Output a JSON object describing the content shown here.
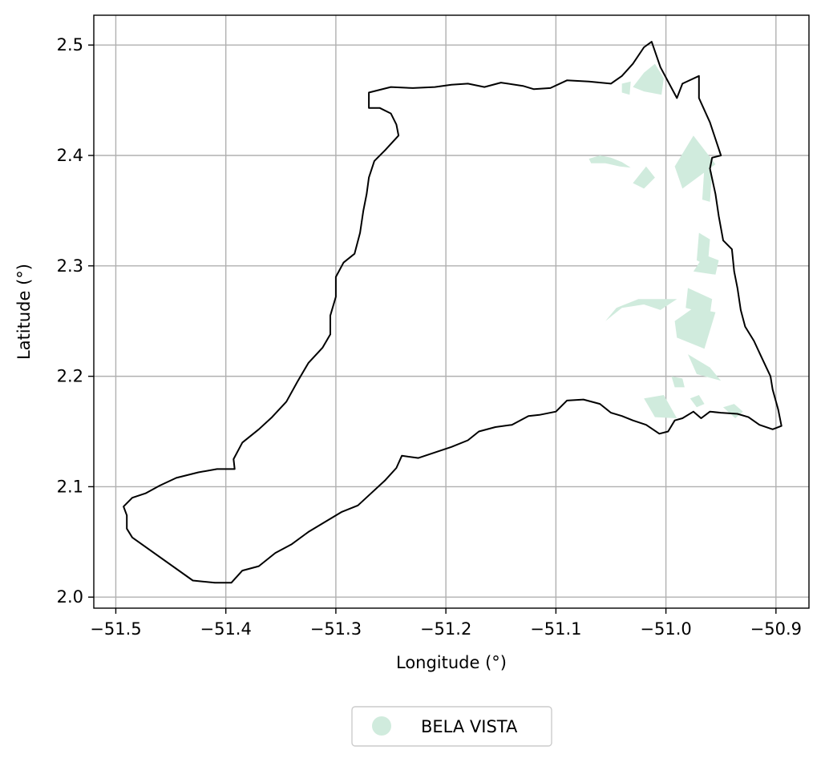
{
  "chart_data": {
    "type": "map",
    "xlabel": "Longitude (°)",
    "ylabel": "Latitude (°)",
    "xlim": [
      -51.52,
      -50.87
    ],
    "ylim": [
      1.99,
      2.527
    ],
    "x_ticks": [
      -51.5,
      -51.4,
      -51.3,
      -51.2,
      -51.1,
      -51.0,
      -50.9
    ],
    "x_tick_labels": [
      "−51.5",
      "−51.4",
      "−51.3",
      "−51.2",
      "−51.1",
      "−51.0",
      "−50.9"
    ],
    "y_ticks": [
      2.0,
      2.1,
      2.2,
      2.3,
      2.4,
      2.5
    ],
    "y_tick_labels": [
      "2.0",
      "2.1",
      "2.2",
      "2.3",
      "2.4",
      "2.5"
    ],
    "grid": true,
    "legend_position": "bottom-center",
    "legend": [
      {
        "label": "BELA VISTA",
        "color": "#d0ebdd"
      }
    ],
    "boundary": [
      [
        -51.485,
        2.054
      ],
      [
        -51.49,
        2.062
      ],
      [
        -51.49,
        2.074
      ],
      [
        -51.493,
        2.082
      ],
      [
        -51.485,
        2.09
      ],
      [
        -51.473,
        2.094
      ],
      [
        -51.46,
        2.101
      ],
      [
        -51.445,
        2.108
      ],
      [
        -51.425,
        2.113
      ],
      [
        -51.408,
        2.116
      ],
      [
        -51.392,
        2.116
      ],
      [
        -51.393,
        2.125
      ],
      [
        -51.385,
        2.14
      ],
      [
        -51.37,
        2.152
      ],
      [
        -51.358,
        2.163
      ],
      [
        -51.345,
        2.177
      ],
      [
        -51.335,
        2.195
      ],
      [
        -51.325,
        2.212
      ],
      [
        -51.312,
        2.226
      ],
      [
        -51.305,
        2.238
      ],
      [
        -51.305,
        2.255
      ],
      [
        -51.3,
        2.272
      ],
      [
        -51.3,
        2.29
      ],
      [
        -51.293,
        2.303
      ],
      [
        -51.283,
        2.311
      ],
      [
        -51.278,
        2.33
      ],
      [
        -51.275,
        2.35
      ],
      [
        -51.272,
        2.365
      ],
      [
        -51.27,
        2.38
      ],
      [
        -51.265,
        2.395
      ],
      [
        -51.255,
        2.405
      ],
      [
        -51.243,
        2.418
      ],
      [
        -51.245,
        2.428
      ],
      [
        -51.25,
        2.438
      ],
      [
        -51.26,
        2.443
      ],
      [
        -51.27,
        2.443
      ],
      [
        -51.27,
        2.457
      ],
      [
        -51.25,
        2.462
      ],
      [
        -51.23,
        2.461
      ],
      [
        -51.21,
        2.462
      ],
      [
        -51.195,
        2.464
      ],
      [
        -51.18,
        2.465
      ],
      [
        -51.165,
        2.462
      ],
      [
        -51.15,
        2.466
      ],
      [
        -51.13,
        2.463
      ],
      [
        -51.12,
        2.46
      ],
      [
        -51.105,
        2.461
      ],
      [
        -51.09,
        2.468
      ],
      [
        -51.07,
        2.467
      ],
      [
        -51.05,
        2.465
      ],
      [
        -51.04,
        2.472
      ],
      [
        -51.03,
        2.483
      ],
      [
        -51.02,
        2.498
      ],
      [
        -51.013,
        2.503
      ],
      [
        -51.005,
        2.48
      ],
      [
        -50.99,
        2.452
      ],
      [
        -50.985,
        2.465
      ],
      [
        -50.97,
        2.472
      ],
      [
        -50.97,
        2.452
      ],
      [
        -50.96,
        2.43
      ],
      [
        -50.95,
        2.4
      ],
      [
        -50.958,
        2.398
      ],
      [
        -50.96,
        2.388
      ],
      [
        -50.955,
        2.365
      ],
      [
        -50.952,
        2.345
      ],
      [
        -50.948,
        2.323
      ],
      [
        -50.94,
        2.315
      ],
      [
        -50.938,
        2.295
      ],
      [
        -50.935,
        2.28
      ],
      [
        -50.932,
        2.26
      ],
      [
        -50.928,
        2.245
      ],
      [
        -50.92,
        2.232
      ],
      [
        -50.913,
        2.217
      ],
      [
        -50.905,
        2.2
      ],
      [
        -50.903,
        2.188
      ],
      [
        -50.898,
        2.17
      ],
      [
        -50.895,
        2.155
      ],
      [
        -50.903,
        2.152
      ],
      [
        -50.915,
        2.156
      ],
      [
        -50.925,
        2.163
      ],
      [
        -50.935,
        2.166
      ],
      [
        -50.95,
        2.167
      ],
      [
        -50.96,
        2.168
      ],
      [
        -50.968,
        2.162
      ],
      [
        -50.975,
        2.168
      ],
      [
        -50.985,
        2.162
      ],
      [
        -50.992,
        2.16
      ],
      [
        -50.998,
        2.15
      ],
      [
        -51.006,
        2.148
      ],
      [
        -51.018,
        2.156
      ],
      [
        -51.03,
        2.16
      ],
      [
        -51.04,
        2.164
      ],
      [
        -51.05,
        2.167
      ],
      [
        -51.06,
        2.175
      ],
      [
        -51.075,
        2.179
      ],
      [
        -51.09,
        2.178
      ],
      [
        -51.1,
        2.168
      ],
      [
        -51.115,
        2.165
      ],
      [
        -51.125,
        2.164
      ],
      [
        -51.14,
        2.156
      ],
      [
        -51.155,
        2.154
      ],
      [
        -51.17,
        2.15
      ],
      [
        -51.18,
        2.142
      ],
      [
        -51.195,
        2.136
      ],
      [
        -51.21,
        2.131
      ],
      [
        -51.225,
        2.126
      ],
      [
        -51.24,
        2.128
      ],
      [
        -51.245,
        2.117
      ],
      [
        -51.255,
        2.106
      ],
      [
        -51.268,
        2.094
      ],
      [
        -51.28,
        2.083
      ],
      [
        -51.295,
        2.077
      ],
      [
        -51.31,
        2.068
      ],
      [
        -51.325,
        2.059
      ],
      [
        -51.34,
        2.048
      ],
      [
        -51.355,
        2.04
      ],
      [
        -51.37,
        2.028
      ],
      [
        -51.385,
        2.024
      ],
      [
        -51.395,
        2.013
      ],
      [
        -51.41,
        2.013
      ],
      [
        -51.43,
        2.015
      ]
    ],
    "features": [
      [
        [
          -51.02,
          2.475
        ],
        [
          -51.01,
          2.483
        ],
        [
          -51.002,
          2.47
        ],
        [
          -51.004,
          2.455
        ],
        [
          -51.02,
          2.458
        ],
        [
          -51.03,
          2.462
        ]
      ],
      [
        [
          -51.04,
          2.465
        ],
        [
          -51.032,
          2.467
        ],
        [
          -51.033,
          2.455
        ],
        [
          -51.04,
          2.457
        ]
      ],
      [
        [
          -50.992,
          2.39
        ],
        [
          -50.975,
          2.418
        ],
        [
          -50.955,
          2.392
        ],
        [
          -50.985,
          2.37
        ]
      ],
      [
        [
          -50.965,
          2.39
        ],
        [
          -50.958,
          2.385
        ],
        [
          -50.96,
          2.358
        ],
        [
          -50.967,
          2.36
        ]
      ],
      [
        [
          -51.07,
          2.397
        ],
        [
          -51.06,
          2.4
        ],
        [
          -51.05,
          2.398
        ],
        [
          -51.04,
          2.394
        ],
        [
          -51.032,
          2.389
        ],
        [
          -51.042,
          2.39
        ],
        [
          -51.055,
          2.393
        ],
        [
          -51.068,
          2.393
        ]
      ],
      [
        [
          -51.03,
          2.375
        ],
        [
          -51.018,
          2.39
        ],
        [
          -51.01,
          2.38
        ],
        [
          -51.02,
          2.37
        ]
      ],
      [
        [
          -50.97,
          2.33
        ],
        [
          -50.96,
          2.324
        ],
        [
          -50.962,
          2.3
        ],
        [
          -50.972,
          2.305
        ]
      ],
      [
        [
          -50.965,
          2.31
        ],
        [
          -50.952,
          2.305
        ],
        [
          -50.955,
          2.292
        ],
        [
          -50.975,
          2.295
        ]
      ],
      [
        [
          -51.055,
          2.25
        ],
        [
          -51.04,
          2.262
        ],
        [
          -51.02,
          2.265
        ],
        [
          -51.005,
          2.26
        ],
        [
          -50.99,
          2.27
        ],
        [
          -51.005,
          2.27
        ],
        [
          -51.025,
          2.27
        ],
        [
          -51.045,
          2.262
        ]
      ],
      [
        [
          -50.98,
          2.28
        ],
        [
          -50.958,
          2.27
        ],
        [
          -50.96,
          2.256
        ],
        [
          -50.982,
          2.262
        ]
      ],
      [
        [
          -50.992,
          2.25
        ],
        [
          -50.975,
          2.262
        ],
        [
          -50.955,
          2.258
        ],
        [
          -50.965,
          2.225
        ],
        [
          -50.99,
          2.235
        ]
      ],
      [
        [
          -50.98,
          2.22
        ],
        [
          -50.96,
          2.208
        ],
        [
          -50.95,
          2.196
        ],
        [
          -50.972,
          2.202
        ]
      ],
      [
        [
          -51.02,
          2.18
        ],
        [
          -51.002,
          2.183
        ],
        [
          -50.99,
          2.162
        ],
        [
          -51.01,
          2.163
        ]
      ],
      [
        [
          -50.995,
          2.2
        ],
        [
          -50.985,
          2.198
        ],
        [
          -50.983,
          2.19
        ],
        [
          -50.992,
          2.19
        ]
      ],
      [
        [
          -50.948,
          2.172
        ],
        [
          -50.938,
          2.175
        ],
        [
          -50.93,
          2.168
        ],
        [
          -50.937,
          2.162
        ]
      ],
      [
        [
          -50.978,
          2.18
        ],
        [
          -50.97,
          2.183
        ],
        [
          -50.965,
          2.175
        ],
        [
          -50.972,
          2.172
        ]
      ]
    ]
  }
}
